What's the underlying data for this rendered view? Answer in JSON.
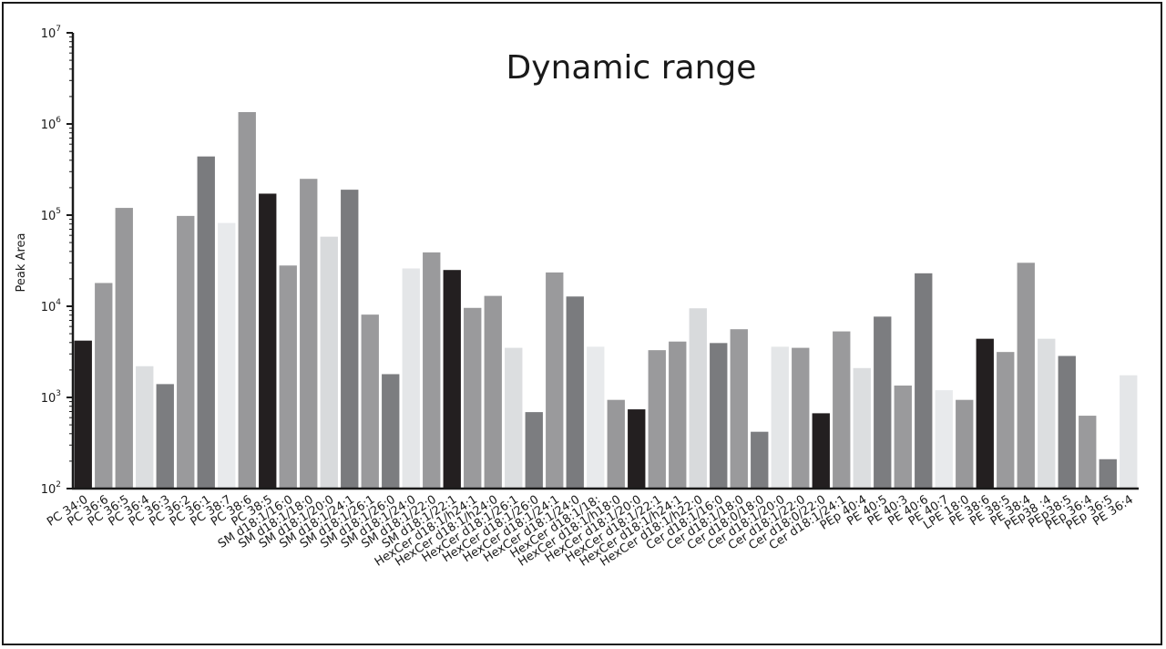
{
  "chart_data": {
    "type": "bar",
    "title": "Dynamic range",
    "xlabel": "",
    "ylabel": "Peak Area",
    "yscale": "log",
    "ylim": [
      100,
      10000000
    ],
    "yticks": [
      {
        "base": "10",
        "exp": "2",
        "value": 100
      },
      {
        "base": "10",
        "exp": "3",
        "value": 1000
      },
      {
        "base": "10",
        "exp": "4",
        "value": 10000
      },
      {
        "base": "10",
        "exp": "5",
        "value": 100000
      },
      {
        "base": "10",
        "exp": "6",
        "value": 1000000
      },
      {
        "base": "10",
        "exp": "7",
        "value": 10000000
      }
    ],
    "grid": false,
    "legend": "none",
    "categories": [
      "PC 34:0",
      "PC 36:6",
      "PC 36:5",
      "PC 36:4",
      "PC 36:3",
      "PC 36:2",
      "PC 36:1",
      "PC 38:7",
      "PC 38:6",
      "PC 38:5",
      "SM d18:1/16:0",
      "SM d18:1/18:0",
      "SM d18:1/20:0",
      "SM d18:1/24:1",
      "SM d18:1/26:1",
      "SM d18:1/26:0",
      "SM d18:1/24:0",
      "SM d18:1/22:0",
      "SM d18:1/22:1",
      "HexCer d18:1/h24:1",
      "HexCer d18:1/h24:0",
      "HexCer d18:1/26:1",
      "HexCer d18:1/26:0",
      "HexCer d18:1/24:1",
      "HexCer d18:1/24:0",
      "HexCer d18:1/18:",
      "HexCer d18:1/h18:0",
      "HexCer d18:1/20:0",
      "HexCer d18:1/22:1",
      "HexCer d18:1/h24:1",
      "HexCer d18:1/h22:0",
      "Cer d18:1/16:0",
      "Cer d18:1/18:0",
      "Cer d18:0/18:0",
      "Cer d18:1/20:0",
      "Cer d18:1/22:0",
      "Cer d18:0/22:0",
      "Cer d18:1/24:1",
      "PEp 40:4",
      "PE 40:5",
      "PE 40:3",
      "PE 40:6",
      "PE 40:7",
      "LPE 18:0",
      "PE 38:6",
      "PE 38:5",
      "PE 38:4",
      "PEp38 :4",
      "PEp38:5",
      "PEp 36:4",
      "PEp 36:5",
      "PE 36:4"
    ],
    "values": [
      4200,
      18000,
      120000,
      2200,
      1400,
      98000,
      440000,
      82000,
      1350000,
      172000,
      28000,
      250000,
      58000,
      190000,
      8100,
      1800,
      26000,
      39000,
      25000,
      9600,
      13000,
      3500,
      690,
      23500,
      12800,
      3600,
      940,
      740,
      3300,
      4100,
      9500,
      3950,
      5600,
      420,
      3600,
      3500,
      670,
      5300,
      2100,
      7700,
      1350,
      23000,
      1200,
      940,
      4400,
      3150,
      30000,
      4400,
      2850,
      630,
      210,
      1750
    ],
    "bar_colors": [
      "#231f20",
      "#9a9a9c",
      "#98989a",
      "#dcdee0",
      "#7c7d80",
      "#9a9a9c",
      "#7a7b7e",
      "#e8eaec",
      "#98989a",
      "#231f20",
      "#9a9a9c",
      "#98989a",
      "#d8dadc",
      "#7a7b7e",
      "#9a9a9c",
      "#7c7d80",
      "#e4e6e8",
      "#9a9a9c",
      "#231f20",
      "#9a9a9c",
      "#98989a",
      "#dcdee0",
      "#7c7d80",
      "#9a9a9c",
      "#7a7b7e",
      "#e8eaec",
      "#98989a",
      "#231f20",
      "#9a9a9c",
      "#98989a",
      "#d8dadc",
      "#7a7b7e",
      "#9a9a9c",
      "#7c7d80",
      "#e4e6e8",
      "#9a9a9c",
      "#231f20",
      "#9a9a9c",
      "#dcdee0",
      "#7c7d80",
      "#9a9a9c",
      "#7a7b7e",
      "#e8eaec",
      "#98989a",
      "#231f20",
      "#9a9a9c",
      "#98989a",
      "#dcdee0",
      "#7a7b7e",
      "#9a9a9c",
      "#7c7d80",
      "#e4e6e8"
    ]
  }
}
